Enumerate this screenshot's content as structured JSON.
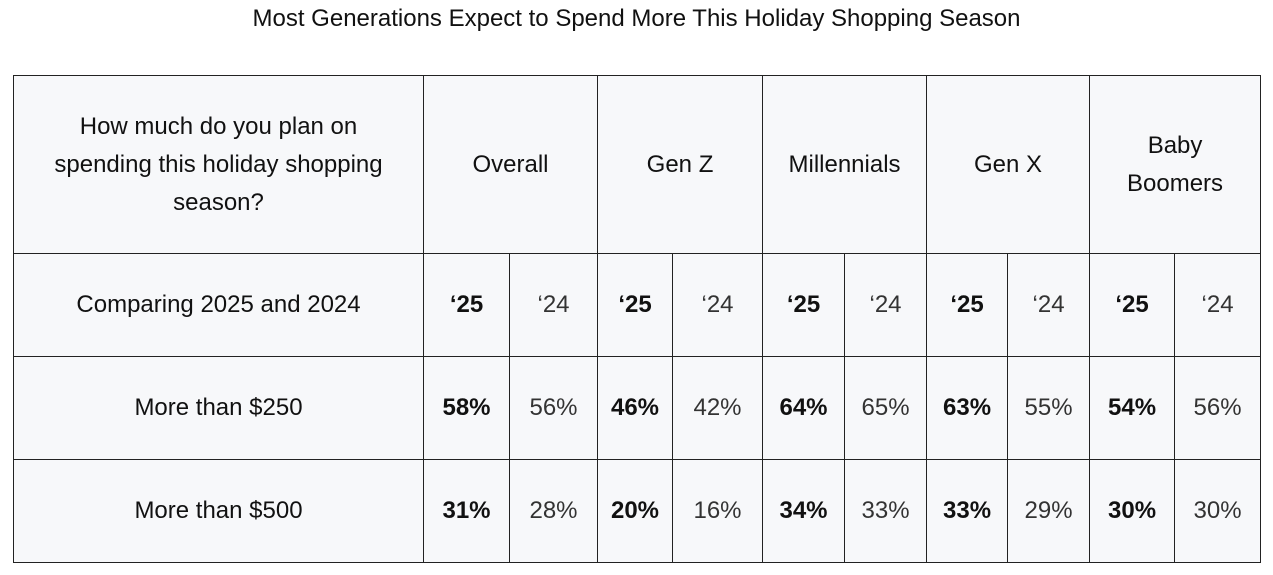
{
  "chart_data": {
    "type": "table",
    "title": "Most Generations Expect to Spend More This Holiday Shopping Season",
    "question": "How much do you plan on spending this holiday shopping season?",
    "comparison_label": "Comparing 2025 and 2024",
    "years": [
      "‘25",
      "‘24"
    ],
    "groups": [
      "Overall",
      "Gen Z",
      "Millennials",
      "Gen X",
      "Baby Boomers"
    ],
    "rows": [
      {
        "label": "More than $250",
        "values": [
          [
            "58%",
            "56%"
          ],
          [
            "46%",
            "42%"
          ],
          [
            "64%",
            "65%"
          ],
          [
            "63%",
            "55%"
          ],
          [
            "54%",
            "56%"
          ]
        ]
      },
      {
        "label": "More than $500",
        "values": [
          [
            "31%",
            "28%"
          ],
          [
            "20%",
            "16%"
          ],
          [
            "34%",
            "33%"
          ],
          [
            "33%",
            "29%"
          ],
          [
            "30%",
            "30%"
          ]
        ]
      }
    ]
  }
}
